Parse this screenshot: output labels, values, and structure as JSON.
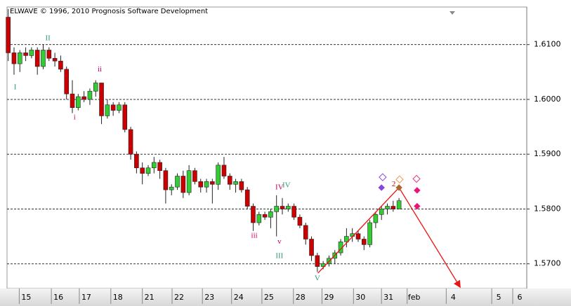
{
  "chart_data": {
    "type": "candlestick",
    "title": "ELWAVE © 1996, 2010 Prognosis Software Development",
    "x": [
      0,
      1,
      2,
      3,
      4,
      5,
      6,
      7,
      8,
      9,
      10,
      11,
      12,
      13,
      14,
      15,
      16,
      17,
      18,
      19,
      20,
      21,
      22,
      23,
      24,
      25,
      26,
      27,
      28,
      29,
      30,
      31,
      32,
      33,
      34,
      35,
      36,
      37,
      38,
      39,
      40,
      41,
      42,
      43,
      44,
      45,
      46,
      47,
      48,
      49,
      50,
      51,
      52,
      53,
      54,
      55,
      56,
      57,
      58,
      59,
      60,
      61,
      62,
      63,
      64,
      65,
      66,
      67
    ],
    "open": [
      1.615,
      1.6085,
      1.6065,
      1.6085,
      1.608,
      1.609,
      1.606,
      1.609,
      1.6075,
      1.607,
      1.6055,
      1.601,
      1.5985,
      1.6005,
      1.6,
      1.6015,
      1.603,
      1.597,
      1.599,
      1.598,
      1.599,
      1.5945,
      1.59,
      1.5875,
      1.5865,
      1.5875,
      1.5885,
      1.587,
      1.5835,
      1.584,
      1.586,
      1.583,
      1.587,
      1.585,
      1.584,
      1.585,
      1.5845,
      1.588,
      1.586,
      1.5845,
      1.585,
      1.5835,
      1.5805,
      1.5775,
      1.579,
      1.5785,
      1.5795,
      1.5805,
      1.58,
      1.5805,
      1.5785,
      1.577,
      1.5745,
      1.5715,
      1.5695,
      1.57,
      1.571,
      1.572,
      1.574,
      1.575,
      1.5755,
      1.5745,
      1.5735,
      1.5775,
      1.579,
      1.58,
      1.5805,
      1.58
    ],
    "high": [
      1.6165,
      1.6095,
      1.609,
      1.6095,
      1.6095,
      1.6095,
      1.61,
      1.6095,
      1.6085,
      1.608,
      1.606,
      1.6035,
      1.601,
      1.6015,
      1.602,
      1.6035,
      1.603,
      1.6,
      1.5995,
      1.5995,
      1.5995,
      1.595,
      1.5905,
      1.5885,
      1.588,
      1.5895,
      1.589,
      1.5875,
      1.5845,
      1.5865,
      1.587,
      1.588,
      1.5875,
      1.5855,
      1.5855,
      1.5855,
      1.5885,
      1.5895,
      1.5865,
      1.5855,
      1.5855,
      1.584,
      1.581,
      1.5795,
      1.5795,
      1.58,
      1.5825,
      1.582,
      1.581,
      1.581,
      1.579,
      1.5775,
      1.575,
      1.572,
      1.5705,
      1.5715,
      1.5725,
      1.5745,
      1.5765,
      1.5765,
      1.576,
      1.575,
      1.578,
      1.5795,
      1.5805,
      1.581,
      1.5815,
      1.582
    ],
    "low": [
      1.607,
      1.6045,
      1.605,
      1.607,
      1.6075,
      1.6045,
      1.6055,
      1.607,
      1.606,
      1.605,
      1.6,
      1.5975,
      1.598,
      1.5995,
      1.599,
      1.6005,
      1.5955,
      1.5965,
      1.597,
      1.5975,
      1.594,
      1.589,
      1.5865,
      1.5845,
      1.586,
      1.5865,
      1.5855,
      1.581,
      1.5825,
      1.5835,
      1.582,
      1.5825,
      1.5845,
      1.583,
      1.583,
      1.581,
      1.5835,
      1.5855,
      1.5835,
      1.583,
      1.583,
      1.58,
      1.576,
      1.577,
      1.578,
      1.5765,
      1.575,
      1.579,
      1.5795,
      1.578,
      1.5765,
      1.5735,
      1.5705,
      1.5685,
      1.569,
      1.5695,
      1.57,
      1.5715,
      1.573,
      1.574,
      1.574,
      1.5725,
      1.573,
      1.5765,
      1.578,
      1.579,
      1.5795,
      1.58
    ],
    "close": [
      1.6085,
      1.6065,
      1.6085,
      1.608,
      1.609,
      1.606,
      1.609,
      1.6075,
      1.607,
      1.6055,
      1.601,
      1.5985,
      1.6005,
      1.6,
      1.6015,
      1.603,
      1.597,
      1.599,
      1.598,
      1.599,
      1.5945,
      1.59,
      1.5875,
      1.5865,
      1.5875,
      1.5885,
      1.587,
      1.5835,
      1.584,
      1.586,
      1.583,
      1.587,
      1.585,
      1.584,
      1.585,
      1.5845,
      1.588,
      1.586,
      1.5845,
      1.585,
      1.5835,
      1.5805,
      1.5775,
      1.579,
      1.5785,
      1.5795,
      1.5805,
      1.58,
      1.5805,
      1.5785,
      1.577,
      1.5745,
      1.5715,
      1.5695,
      1.57,
      1.571,
      1.572,
      1.574,
      1.575,
      1.5755,
      1.5745,
      1.5735,
      1.5775,
      1.579,
      1.58,
      1.5805,
      1.58,
      1.5815
    ],
    "up_color": "#33cc33",
    "down_color": "#cc0000",
    "xlim": [
      -0.2,
      88.9
    ],
    "ylim": [
      1.56549,
      1.61686
    ],
    "xticks": [
      {
        "value": 3.1,
        "label": "15"
      },
      {
        "value": 8.6,
        "label": "16"
      },
      {
        "value": 13.4,
        "label": "17"
      },
      {
        "value": 18.8,
        "label": "18"
      },
      {
        "value": 24.2,
        "label": "21"
      },
      {
        "value": 29.3,
        "label": "22"
      },
      {
        "value": 34.5,
        "label": "23"
      },
      {
        "value": 39.5,
        "label": "24"
      },
      {
        "value": 44.7,
        "label": "25"
      },
      {
        "value": 50.1,
        "label": "28"
      },
      {
        "value": 55.0,
        "label": "29"
      },
      {
        "value": 60.4,
        "label": "30"
      },
      {
        "value": 65.2,
        "label": "31"
      },
      {
        "value": 69.6,
        "label": "feb"
      },
      {
        "value": 76.3,
        "label": "4"
      },
      {
        "value": 84.1,
        "label": "5"
      },
      {
        "value": 87.7,
        "label": "6"
      }
    ],
    "yticks": [
      {
        "value": 1.57,
        "label": "1.5700"
      },
      {
        "value": 1.58,
        "label": "1.5800"
      },
      {
        "value": 1.59,
        "label": "1.5900"
      },
      {
        "value": 1.6,
        "label": "1.6000"
      },
      {
        "value": 1.61,
        "label": "1.6100"
      }
    ],
    "grid": true,
    "annotations": [
      {
        "text": "I",
        "x": 1.2,
        "y": 1.6022,
        "color": "#2e9b6b"
      },
      {
        "text": "II",
        "x": 6.8,
        "y": 1.6111,
        "color": "#2e9b6b"
      },
      {
        "text": "ii",
        "x": 15.7,
        "y": 1.6054,
        "color": "#cc0066"
      },
      {
        "text": "i",
        "x": 11.4,
        "y": 1.5967,
        "color": "#cc0066"
      },
      {
        "text": "iii",
        "x": 42.2,
        "y": 1.5751,
        "color": "#cc0066"
      },
      {
        "text": "IV",
        "x": 46.5,
        "y": 1.5839,
        "color": "#cc0066"
      },
      {
        "text": "IV",
        "x": 47.7,
        "y": 1.5843,
        "color": "#2e9b6b"
      },
      {
        "text": "v",
        "x": 46.5,
        "y": 1.574,
        "color": "#cc0066"
      },
      {
        "text": "III",
        "x": 46.5,
        "y": 1.5714,
        "color": "#2e9b6b"
      },
      {
        "text": "V",
        "x": 53.0,
        "y": 1.5673,
        "color": "#2e9b6b"
      },
      {
        "text": "2",
        "x": 66.1,
        "y": 1.5845,
        "color": "#cc0000"
      }
    ],
    "projection": {
      "x": [
        53.1,
        67.0,
        77.5
      ],
      "y": [
        1.5683,
        1.5839,
        1.5657
      ],
      "color": "#ee1111"
    },
    "markers": [
      {
        "x": 64.2,
        "y": 1.5858,
        "color": "#8844dd",
        "filled": false
      },
      {
        "x": 64.0,
        "y": 1.5839,
        "color": "#8844dd",
        "filled": true
      },
      {
        "x": 67.1,
        "y": 1.5854,
        "color": "#ee9944",
        "filled": false
      },
      {
        "x": 67.0,
        "y": 1.5839,
        "color": "#aa6633",
        "filled": true
      },
      {
        "x": 70.0,
        "y": 1.5855,
        "color": "#ee3388",
        "filled": false
      },
      {
        "x": 70.1,
        "y": 1.5834,
        "color": "#ee1177",
        "filled": true
      },
      {
        "x": 70.1,
        "y": 1.5805,
        "color": "#ee1177",
        "filled": true
      }
    ]
  }
}
